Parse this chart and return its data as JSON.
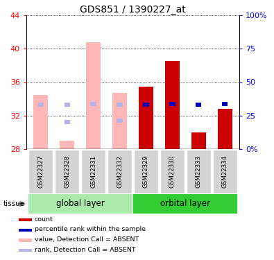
{
  "title": "GDS851 / 1390227_at",
  "samples": [
    "GSM22327",
    "GSM22328",
    "GSM22331",
    "GSM22332",
    "GSM22329",
    "GSM22330",
    "GSM22333",
    "GSM22334"
  ],
  "ylim": [
    28,
    44
  ],
  "y_ticks": [
    28,
    32,
    36,
    40,
    44
  ],
  "y2_values": [
    0,
    25,
    50,
    75,
    100
  ],
  "y2_labels": [
    "0%",
    "25",
    "50",
    "75",
    "100%"
  ],
  "absent_value": [
    34.5,
    29.0,
    40.8,
    34.7,
    null,
    null,
    null,
    null
  ],
  "absent_rank_val": [
    33.3,
    33.1,
    33.6,
    33.0,
    null,
    null,
    null,
    null
  ],
  "present_count": [
    null,
    null,
    null,
    null,
    35.5,
    38.5,
    30.0,
    32.8
  ],
  "present_rank_val": [
    null,
    null,
    null,
    null,
    33.3,
    33.5,
    33.0,
    33.5
  ],
  "absent_rank_dot_only": [
    {
      "idx": 1,
      "pct": 20.0
    },
    {
      "idx": 3,
      "pct": 21.0
    }
  ],
  "count_color": "#cc0000",
  "rank_color": "#0000bb",
  "absent_val_color": "#ffb6b6",
  "absent_rank_color": "#b3b3e6",
  "global_color": "#aaeaaa",
  "orbital_color": "#33cc33",
  "sample_box_color": "#d3d3d3",
  "legend": [
    {
      "label": "count",
      "color": "#cc0000"
    },
    {
      "label": "percentile rank within the sample",
      "color": "#0000bb"
    },
    {
      "label": "value, Detection Call = ABSENT",
      "color": "#ffb6b6"
    },
    {
      "label": "rank, Detection Call = ABSENT",
      "color": "#b3b3e6"
    }
  ]
}
